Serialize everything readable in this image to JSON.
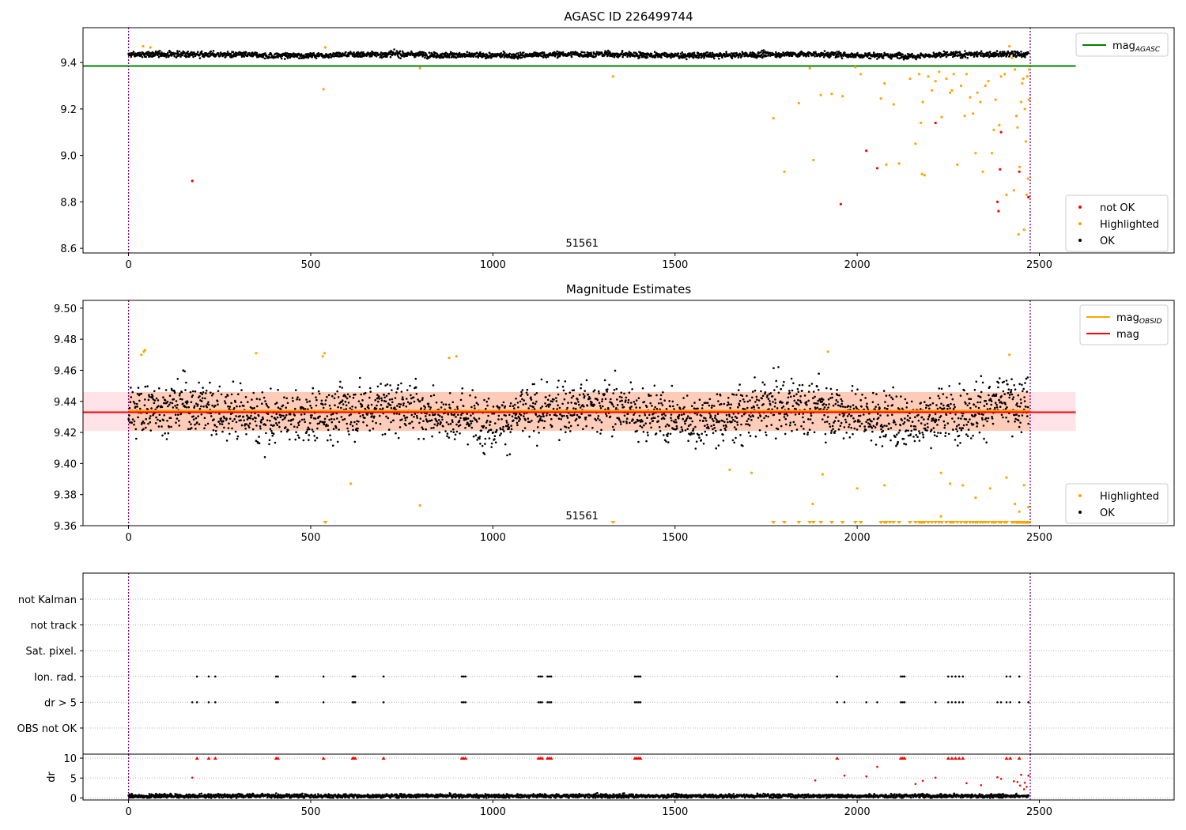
{
  "figure": {
    "background": "#ffffff"
  },
  "colors": {
    "ok": "#000000",
    "highlighted": "#ffa500",
    "not_ok": "#ff0000",
    "agasc_line": "#008000",
    "mag_line": "#ff0000",
    "mag_obsid_line": "#ffa500",
    "obsid_boundary": "#800080",
    "mag_band": "#ffc0cb",
    "grid": "#b0b0b0"
  },
  "chart_data": [
    {
      "id": "top",
      "type": "scatter",
      "title": "AGASC ID 226499744",
      "xlim": [
        -125,
        2870
      ],
      "ylim": [
        8.58,
        9.55
      ],
      "xticks": [
        0,
        500,
        1000,
        1500,
        2000,
        2500
      ],
      "xtick_labels": [
        "0",
        "500",
        "1000",
        "1500",
        "2000",
        "2500"
      ],
      "yticks": [
        8.6,
        8.8,
        9.0,
        9.2,
        9.4
      ],
      "ytick_labels": [
        "8.6",
        "8.8",
        "9.0",
        "9.2",
        "9.4"
      ],
      "obsid_boundaries": [
        0,
        2475
      ],
      "obsid_label": "51561",
      "obsid_label_x": 1200,
      "mag_agasc": 9.385,
      "mag_agasc_x_range": [
        -125,
        2600
      ],
      "ok_series": {
        "name": "OK",
        "n": 2470,
        "x_range": [
          0,
          2470
        ],
        "center": 9.433,
        "spread": 0.008
      },
      "highlighted_points": [
        {
          "x": 40,
          "y": 9.47
        },
        {
          "x": 60,
          "y": 9.465
        },
        {
          "x": 535,
          "y": 9.285
        },
        {
          "x": 540,
          "y": 9.465
        },
        {
          "x": 800,
          "y": 9.375
        },
        {
          "x": 1330,
          "y": 9.34
        },
        {
          "x": 1770,
          "y": 9.16
        },
        {
          "x": 1800,
          "y": 8.93
        },
        {
          "x": 1840,
          "y": 9.225
        },
        {
          "x": 1870,
          "y": 9.375
        },
        {
          "x": 1880,
          "y": 8.98
        },
        {
          "x": 1900,
          "y": 9.26
        },
        {
          "x": 1930,
          "y": 9.265
        },
        {
          "x": 1960,
          "y": 9.255
        },
        {
          "x": 1995,
          "y": 9.38
        },
        {
          "x": 2010,
          "y": 9.35
        },
        {
          "x": 2065,
          "y": 9.245
        },
        {
          "x": 2075,
          "y": 9.31
        },
        {
          "x": 2080,
          "y": 8.96
        },
        {
          "x": 2100,
          "y": 9.22
        },
        {
          "x": 2115,
          "y": 8.965
        },
        {
          "x": 2145,
          "y": 9.33
        },
        {
          "x": 2160,
          "y": 9.05
        },
        {
          "x": 2170,
          "y": 9.35
        },
        {
          "x": 2175,
          "y": 9.14
        },
        {
          "x": 2178,
          "y": 8.92
        },
        {
          "x": 2180,
          "y": 9.23
        },
        {
          "x": 2185,
          "y": 8.915
        },
        {
          "x": 2195,
          "y": 9.34
        },
        {
          "x": 2205,
          "y": 9.28
        },
        {
          "x": 2215,
          "y": 9.32
        },
        {
          "x": 2225,
          "y": 9.36
        },
        {
          "x": 2232,
          "y": 9.165
        },
        {
          "x": 2245,
          "y": 9.33
        },
        {
          "x": 2255,
          "y": 9.27
        },
        {
          "x": 2260,
          "y": 9.28
        },
        {
          "x": 2265,
          "y": 9.35
        },
        {
          "x": 2275,
          "y": 8.96
        },
        {
          "x": 2285,
          "y": 9.3
        },
        {
          "x": 2295,
          "y": 9.17
        },
        {
          "x": 2300,
          "y": 9.35
        },
        {
          "x": 2310,
          "y": 9.25
        },
        {
          "x": 2318,
          "y": 9.18
        },
        {
          "x": 2325,
          "y": 9.01
        },
        {
          "x": 2330,
          "y": 9.27
        },
        {
          "x": 2338,
          "y": 9.23
        },
        {
          "x": 2345,
          "y": 8.93
        },
        {
          "x": 2352,
          "y": 9.3
        },
        {
          "x": 2360,
          "y": 9.32
        },
        {
          "x": 2370,
          "y": 9.01
        },
        {
          "x": 2375,
          "y": 9.11
        },
        {
          "x": 2380,
          "y": 9.24
        },
        {
          "x": 2390,
          "y": 9.13
        },
        {
          "x": 2395,
          "y": 9.34
        },
        {
          "x": 2405,
          "y": 9.35
        },
        {
          "x": 2410,
          "y": 8.83
        },
        {
          "x": 2418,
          "y": 9.47
        },
        {
          "x": 2425,
          "y": 9.42
        },
        {
          "x": 2430,
          "y": 8.85
        },
        {
          "x": 2433,
          "y": 9.37
        },
        {
          "x": 2437,
          "y": 9.17
        },
        {
          "x": 2440,
          "y": 9.12
        },
        {
          "x": 2443,
          "y": 8.66
        },
        {
          "x": 2446,
          "y": 8.95
        },
        {
          "x": 2450,
          "y": 9.23
        },
        {
          "x": 2453,
          "y": 9.31
        },
        {
          "x": 2456,
          "y": 9.33
        },
        {
          "x": 2458,
          "y": 8.68
        },
        {
          "x": 2460,
          "y": 9.2
        },
        {
          "x": 2463,
          "y": 9.06
        },
        {
          "x": 2465,
          "y": 8.83
        },
        {
          "x": 2467,
          "y": 9.34
        },
        {
          "x": 2469,
          "y": 8.9
        },
        {
          "x": 2471,
          "y": 9.24
        },
        {
          "x": 2472,
          "y": 9.37
        }
      ],
      "not_ok_points": [
        {
          "x": 175,
          "y": 8.89
        },
        {
          "x": 1955,
          "y": 8.79
        },
        {
          "x": 2025,
          "y": 9.02
        },
        {
          "x": 2055,
          "y": 8.945
        },
        {
          "x": 2215,
          "y": 9.14
        },
        {
          "x": 2385,
          "y": 8.8
        },
        {
          "x": 2388,
          "y": 8.76
        },
        {
          "x": 2395,
          "y": 9.1
        },
        {
          "x": 2392,
          "y": 8.94
        },
        {
          "x": 2445,
          "y": 8.93
        },
        {
          "x": 2470,
          "y": 8.82
        }
      ],
      "legend_top_right": [
        {
          "label": "mag",
          "subscript": "AGASC",
          "kind": "line",
          "color": "#008000"
        }
      ],
      "legend_bottom_right": [
        {
          "label": "not OK",
          "kind": "dot",
          "color": "#ff0000"
        },
        {
          "label": "Highlighted",
          "kind": "dot",
          "color": "#ffa500"
        },
        {
          "label": "OK",
          "kind": "dot",
          "color": "#000000"
        }
      ],
      "grid": false
    },
    {
      "id": "middle",
      "type": "scatter",
      "title": "Magnitude Estimates",
      "xlim": [
        -125,
        2870
      ],
      "ylim": [
        9.36,
        9.505
      ],
      "xticks": [
        0,
        500,
        1000,
        1500,
        2000,
        2500
      ],
      "xtick_labels": [
        "0",
        "500",
        "1000",
        "1500",
        "2000",
        "2500"
      ],
      "yticks": [
        9.36,
        9.38,
        9.4,
        9.42,
        9.44,
        9.46,
        9.48,
        9.5
      ],
      "ytick_labels": [
        "9.36",
        "9.38",
        "9.40",
        "9.42",
        "9.44",
        "9.46",
        "9.48",
        "9.50"
      ],
      "obsid_boundaries": [
        0,
        2475
      ],
      "obsid_label": "51561",
      "obsid_label_x": 1200,
      "mag": 9.433,
      "mag_band": [
        9.421,
        9.446
      ],
      "mag_obsid": 9.434,
      "mag_line_x_range": [
        -125,
        2600
      ],
      "mag_obsid_x_range": [
        0,
        2475
      ],
      "ok_series": {
        "name": "OK",
        "n": 2470,
        "x_range": [
          0,
          2470
        ],
        "center": 9.433,
        "spread": 0.011
      },
      "highlighted_points": [
        {
          "x": 35,
          "y": 9.47
        },
        {
          "x": 42,
          "y": 9.472
        },
        {
          "x": 45,
          "y": 9.473
        },
        {
          "x": 350,
          "y": 9.471
        },
        {
          "x": 533,
          "y": 9.469
        },
        {
          "x": 538,
          "y": 9.471
        },
        {
          "x": 610,
          "y": 9.387
        },
        {
          "x": 800,
          "y": 9.373
        },
        {
          "x": 880,
          "y": 9.468
        },
        {
          "x": 900,
          "y": 9.469
        },
        {
          "x": 1650,
          "y": 9.396
        },
        {
          "x": 1710,
          "y": 9.394
        },
        {
          "x": 1878,
          "y": 9.374
        },
        {
          "x": 1905,
          "y": 9.393
        },
        {
          "x": 1920,
          "y": 9.472
        },
        {
          "x": 2000,
          "y": 9.384
        },
        {
          "x": 2075,
          "y": 9.386
        },
        {
          "x": 2230,
          "y": 9.394
        },
        {
          "x": 2255,
          "y": 9.387
        },
        {
          "x": 2290,
          "y": 9.386
        },
        {
          "x": 2325,
          "y": 9.378
        },
        {
          "x": 2365,
          "y": 9.384
        },
        {
          "x": 2410,
          "y": 9.391
        },
        {
          "x": 2418,
          "y": 9.47
        },
        {
          "x": 2433,
          "y": 9.374
        },
        {
          "x": 2445,
          "y": 9.369
        },
        {
          "x": 2458,
          "y": 9.386
        },
        {
          "x": 2470,
          "y": 9.372
        },
        {
          "x": 2230,
          "y": 9.366
        }
      ],
      "clipped_low_x": [
        540,
        1330,
        1770,
        1800,
        1840,
        1870,
        1880,
        1900,
        1930,
        1960,
        1995,
        2010,
        2065,
        2075,
        2080,
        2090,
        2100,
        2115,
        2145,
        2160,
        2170,
        2175,
        2178,
        2180,
        2185,
        2195,
        2205,
        2215,
        2225,
        2232,
        2245,
        2255,
        2260,
        2265,
        2275,
        2285,
        2295,
        2300,
        2310,
        2318,
        2325,
        2330,
        2338,
        2345,
        2352,
        2360,
        2370,
        2375,
        2380,
        2390,
        2395,
        2405,
        2410,
        2425,
        2430,
        2437,
        2440,
        2443,
        2446,
        2450,
        2453,
        2456,
        2460,
        2463,
        2465,
        2467,
        2469,
        2471
      ],
      "legend_top_right": [
        {
          "label": "mag",
          "subscript": "OBSID",
          "kind": "line",
          "color": "#ffa500"
        },
        {
          "label": "mag",
          "subscript": "",
          "kind": "line",
          "color": "#ff0000"
        }
      ],
      "legend_bottom_right": [
        {
          "label": "Highlighted",
          "kind": "dot",
          "color": "#ffa500"
        },
        {
          "label": "OK",
          "kind": "dot",
          "color": "#000000"
        }
      ],
      "grid": false
    },
    {
      "id": "flags",
      "type": "scatter",
      "xlim": [
        -125,
        2870
      ],
      "categories": [
        "not Kalman",
        "not track",
        "Sat. pixel.",
        "Ion. rad.",
        "dr > 5",
        "OBS not OK"
      ],
      "obsid_boundaries": [
        0,
        2475
      ],
      "grid": "y-dotted",
      "flag_points": {
        "Ion. rad.": [
          188,
          220,
          238,
          405,
          410,
          535,
          615,
          618,
          622,
          700,
          915,
          920,
          925,
          1125,
          1130,
          1135,
          1150,
          1155,
          1160,
          1390,
          1395,
          1400,
          1405,
          1945,
          2120,
          2125,
          2130,
          2250,
          2260,
          2270,
          2280,
          2290,
          2410,
          2420,
          2445
        ],
        "dr > 5": [
          175,
          188,
          220,
          238,
          405,
          410,
          535,
          615,
          618,
          622,
          700,
          915,
          920,
          925,
          1125,
          1130,
          1135,
          1150,
          1155,
          1160,
          1390,
          1395,
          1400,
          1405,
          1945,
          1965,
          2025,
          2055,
          2120,
          2125,
          2130,
          2215,
          2250,
          2260,
          2270,
          2280,
          2290,
          2385,
          2395,
          2410,
          2420,
          2445,
          2470
        ]
      }
    },
    {
      "id": "dr",
      "type": "scatter",
      "ylabel": "dr",
      "xlim": [
        -125,
        2870
      ],
      "ylim": [
        -0.5,
        11
      ],
      "xticks": [
        0,
        500,
        1000,
        1500,
        2000,
        2500
      ],
      "xtick_labels": [
        "0",
        "500",
        "1000",
        "1500",
        "2000",
        "2500"
      ],
      "yticks": [
        0,
        5,
        10
      ],
      "ytick_labels": [
        "0",
        "5",
        "10"
      ],
      "dr_threshold": 5,
      "obsid_boundaries": [
        0,
        2475
      ],
      "ok_series": {
        "name": "OK",
        "n": 2470,
        "x_range": [
          0,
          2470
        ],
        "center": 0.5,
        "spread": 0.25
      },
      "clipped_high_x": [
        188,
        220,
        238,
        405,
        410,
        535,
        615,
        618,
        622,
        700,
        915,
        920,
        925,
        1125,
        1130,
        1135,
        1150,
        1155,
        1160,
        1390,
        1395,
        1400,
        1405,
        1945,
        2120,
        2125,
        2130,
        2250,
        2260,
        2270,
        2280,
        2290,
        2410,
        2420,
        2445
      ],
      "red_points": [
        {
          "x": 175,
          "y": 5.1
        },
        {
          "x": 1885,
          "y": 4.4
        },
        {
          "x": 1965,
          "y": 5.6
        },
        {
          "x": 2055,
          "y": 7.8
        },
        {
          "x": 2025,
          "y": 5.4
        },
        {
          "x": 2160,
          "y": 3.5
        },
        {
          "x": 2180,
          "y": 4.3
        },
        {
          "x": 2215,
          "y": 5.1
        },
        {
          "x": 2385,
          "y": 5.2
        },
        {
          "x": 2395,
          "y": 4.8
        },
        {
          "x": 2440,
          "y": 4.0
        },
        {
          "x": 2450,
          "y": 5.8
        },
        {
          "x": 2460,
          "y": 3.8
        },
        {
          "x": 2470,
          "y": 5.6
        },
        {
          "x": 2300,
          "y": 3.7
        },
        {
          "x": 2340,
          "y": 3.2
        },
        {
          "x": 2430,
          "y": 4.2
        },
        {
          "x": 2465,
          "y": 2.8
        },
        {
          "x": 2458,
          "y": 2.2
        },
        {
          "x": 2447,
          "y": 3.1
        }
      ]
    }
  ]
}
